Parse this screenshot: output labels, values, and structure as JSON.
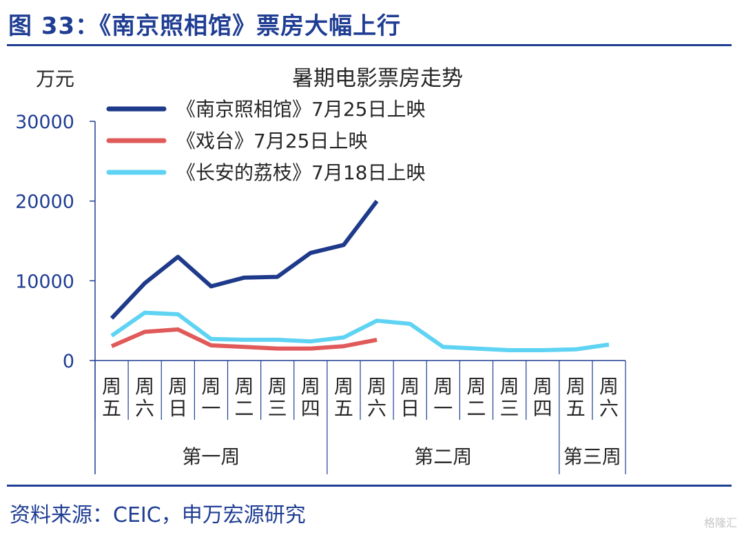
{
  "figure": {
    "title": "图 33：《南京照相馆》票房大幅上行",
    "source": "资料来源：CEIC，申万宏源研究",
    "watermark": "格隆汇"
  },
  "colors": {
    "brand": "#1f3d93",
    "axis": "#1f3d93",
    "text": "#262626",
    "series": [
      "#1e3a8a",
      "#e05a5a",
      "#5fd3f3"
    ]
  },
  "chart_data": {
    "type": "line",
    "title": "暑期电影票房走势",
    "ylabel": "万元",
    "xlabel": "",
    "ylim": [
      0,
      30000
    ],
    "yticks": [
      0,
      10000,
      20000,
      30000
    ],
    "grid": false,
    "legend_position": "top-left",
    "categories": [
      "周五",
      "周六",
      "周日",
      "周一",
      "周二",
      "周三",
      "周四",
      "周五",
      "周六",
      "周日",
      "周一",
      "周二",
      "周三",
      "周四",
      "周五",
      "周六"
    ],
    "groups": [
      {
        "label": "第一周",
        "start": 0,
        "end": 6
      },
      {
        "label": "第二周",
        "start": 7,
        "end": 13
      },
      {
        "label": "第三周",
        "start": 14,
        "end": 15
      }
    ],
    "series": [
      {
        "name": "《南京照相馆》7月25日上映",
        "values": [
          5300,
          9700,
          13000,
          9300,
          10400,
          10500,
          13500,
          14500,
          20000,
          null,
          null,
          null,
          null,
          null,
          null,
          null
        ]
      },
      {
        "name": "《戏台》7月25日上映",
        "values": [
          1800,
          3600,
          3900,
          1900,
          1700,
          1500,
          1500,
          1800,
          2600,
          null,
          null,
          null,
          null,
          null,
          null,
          null
        ]
      },
      {
        "name": "《长安的荔枝》7月18日上映",
        "values": [
          3100,
          6000,
          5800,
          2700,
          2600,
          2600,
          2400,
          2900,
          5000,
          4600,
          1700,
          1500,
          1300,
          1300,
          1400,
          2000
        ]
      }
    ]
  }
}
